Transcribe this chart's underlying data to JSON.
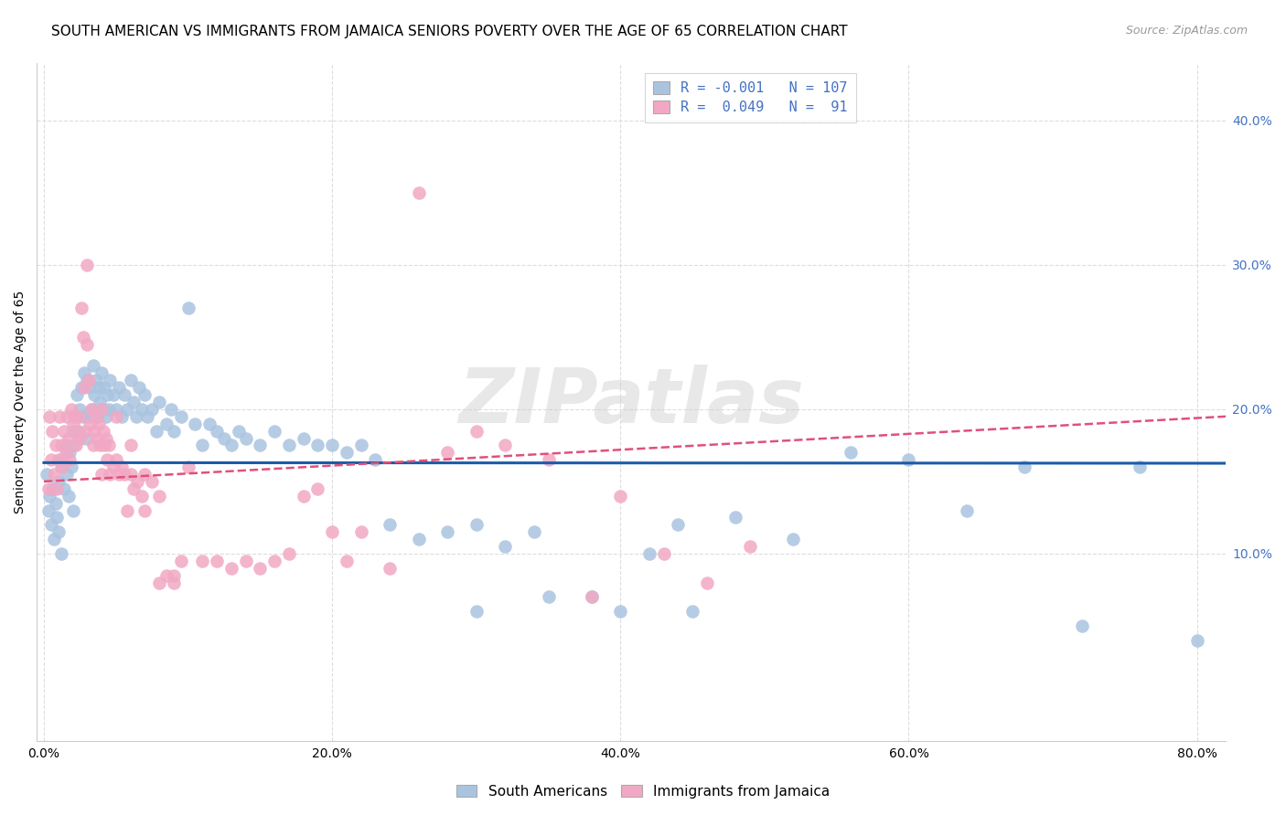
{
  "title": "SOUTH AMERICAN VS IMMIGRANTS FROM JAMAICA SENIORS POVERTY OVER THE AGE OF 65 CORRELATION CHART",
  "source": "Source: ZipAtlas.com",
  "ylabel": "Seniors Poverty Over the Age of 65",
  "x_tick_labels": [
    "0.0%",
    "20.0%",
    "40.0%",
    "60.0%",
    "80.0%"
  ],
  "x_tick_vals": [
    0.0,
    0.2,
    0.4,
    0.6,
    0.8
  ],
  "y_tick_labels_right": [
    "10.0%",
    "20.0%",
    "30.0%",
    "40.0%"
  ],
  "y_tick_vals": [
    0.1,
    0.2,
    0.3,
    0.4
  ],
  "xlim": [
    -0.005,
    0.82
  ],
  "ylim": [
    -0.03,
    0.44
  ],
  "sa_R": -0.001,
  "ja_R": 0.049,
  "sa_N": 107,
  "ja_N": 91,
  "sa_color": "#aac4e0",
  "ja_color": "#f2a8c4",
  "sa_line_color": "#1a5ca8",
  "ja_line_color": "#e0507a",
  "watermark_text": "ZIPatlas",
  "background_color": "#ffffff",
  "grid_color": "#dddddd",
  "title_fontsize": 11,
  "source_fontsize": 9,
  "axis_label_fontsize": 10,
  "tick_fontsize": 10,
  "legend_fontsize": 11,
  "sa_x": [
    0.002,
    0.003,
    0.004,
    0.005,
    0.006,
    0.007,
    0.008,
    0.009,
    0.01,
    0.01,
    0.012,
    0.012,
    0.013,
    0.014,
    0.015,
    0.016,
    0.017,
    0.018,
    0.019,
    0.02,
    0.02,
    0.021,
    0.022,
    0.023,
    0.024,
    0.025,
    0.026,
    0.027,
    0.028,
    0.029,
    0.03,
    0.031,
    0.032,
    0.033,
    0.034,
    0.035,
    0.036,
    0.037,
    0.038,
    0.039,
    0.04,
    0.041,
    0.042,
    0.043,
    0.044,
    0.045,
    0.046,
    0.048,
    0.05,
    0.052,
    0.054,
    0.056,
    0.058,
    0.06,
    0.062,
    0.064,
    0.066,
    0.068,
    0.07,
    0.072,
    0.075,
    0.078,
    0.08,
    0.085,
    0.088,
    0.09,
    0.095,
    0.1,
    0.105,
    0.11,
    0.115,
    0.12,
    0.125,
    0.13,
    0.135,
    0.14,
    0.15,
    0.16,
    0.17,
    0.18,
    0.19,
    0.2,
    0.21,
    0.22,
    0.23,
    0.24,
    0.26,
    0.28,
    0.3,
    0.32,
    0.34,
    0.38,
    0.42,
    0.44,
    0.48,
    0.52,
    0.56,
    0.6,
    0.64,
    0.68,
    0.72,
    0.76,
    0.8,
    0.35,
    0.3,
    0.4,
    0.45
  ],
  "sa_y": [
    0.155,
    0.13,
    0.14,
    0.12,
    0.145,
    0.11,
    0.135,
    0.125,
    0.15,
    0.115,
    0.16,
    0.1,
    0.165,
    0.145,
    0.175,
    0.155,
    0.14,
    0.17,
    0.16,
    0.185,
    0.13,
    0.175,
    0.195,
    0.21,
    0.185,
    0.2,
    0.215,
    0.195,
    0.225,
    0.18,
    0.22,
    0.195,
    0.215,
    0.2,
    0.23,
    0.21,
    0.22,
    0.195,
    0.215,
    0.205,
    0.225,
    0.2,
    0.215,
    0.195,
    0.21,
    0.2,
    0.22,
    0.21,
    0.2,
    0.215,
    0.195,
    0.21,
    0.2,
    0.22,
    0.205,
    0.195,
    0.215,
    0.2,
    0.21,
    0.195,
    0.2,
    0.185,
    0.205,
    0.19,
    0.2,
    0.185,
    0.195,
    0.27,
    0.19,
    0.175,
    0.19,
    0.185,
    0.18,
    0.175,
    0.185,
    0.18,
    0.175,
    0.185,
    0.175,
    0.18,
    0.175,
    0.175,
    0.17,
    0.175,
    0.165,
    0.12,
    0.11,
    0.115,
    0.12,
    0.105,
    0.115,
    0.07,
    0.1,
    0.12,
    0.125,
    0.11,
    0.17,
    0.165,
    0.13,
    0.16,
    0.05,
    0.16,
    0.04,
    0.07,
    0.06,
    0.06,
    0.06
  ],
  "ja_x": [
    0.003,
    0.004,
    0.005,
    0.006,
    0.007,
    0.008,
    0.009,
    0.01,
    0.011,
    0.012,
    0.013,
    0.014,
    0.015,
    0.016,
    0.017,
    0.018,
    0.019,
    0.02,
    0.021,
    0.022,
    0.023,
    0.024,
    0.025,
    0.026,
    0.027,
    0.028,
    0.029,
    0.03,
    0.031,
    0.032,
    0.033,
    0.034,
    0.035,
    0.036,
    0.037,
    0.038,
    0.039,
    0.04,
    0.041,
    0.042,
    0.043,
    0.044,
    0.045,
    0.046,
    0.048,
    0.05,
    0.052,
    0.054,
    0.056,
    0.058,
    0.06,
    0.062,
    0.065,
    0.068,
    0.07,
    0.075,
    0.08,
    0.085,
    0.09,
    0.095,
    0.1,
    0.11,
    0.12,
    0.13,
    0.14,
    0.15,
    0.16,
    0.17,
    0.18,
    0.19,
    0.2,
    0.21,
    0.22,
    0.24,
    0.26,
    0.28,
    0.3,
    0.32,
    0.35,
    0.38,
    0.4,
    0.43,
    0.46,
    0.49,
    0.03,
    0.04,
    0.05,
    0.06,
    0.07,
    0.08,
    0.09
  ],
  "ja_y": [
    0.145,
    0.195,
    0.165,
    0.185,
    0.155,
    0.175,
    0.145,
    0.165,
    0.195,
    0.175,
    0.16,
    0.185,
    0.17,
    0.195,
    0.18,
    0.165,
    0.2,
    0.19,
    0.195,
    0.175,
    0.185,
    0.195,
    0.18,
    0.27,
    0.25,
    0.215,
    0.185,
    0.245,
    0.22,
    0.19,
    0.2,
    0.175,
    0.185,
    0.195,
    0.18,
    0.19,
    0.175,
    0.2,
    0.185,
    0.175,
    0.18,
    0.165,
    0.175,
    0.155,
    0.16,
    0.165,
    0.155,
    0.16,
    0.155,
    0.13,
    0.155,
    0.145,
    0.15,
    0.14,
    0.155,
    0.15,
    0.14,
    0.085,
    0.085,
    0.095,
    0.16,
    0.095,
    0.095,
    0.09,
    0.095,
    0.09,
    0.095,
    0.1,
    0.14,
    0.145,
    0.115,
    0.095,
    0.115,
    0.09,
    0.35,
    0.17,
    0.185,
    0.175,
    0.165,
    0.07,
    0.14,
    0.1,
    0.08,
    0.105,
    0.3,
    0.155,
    0.195,
    0.175,
    0.13,
    0.08,
    0.08
  ]
}
